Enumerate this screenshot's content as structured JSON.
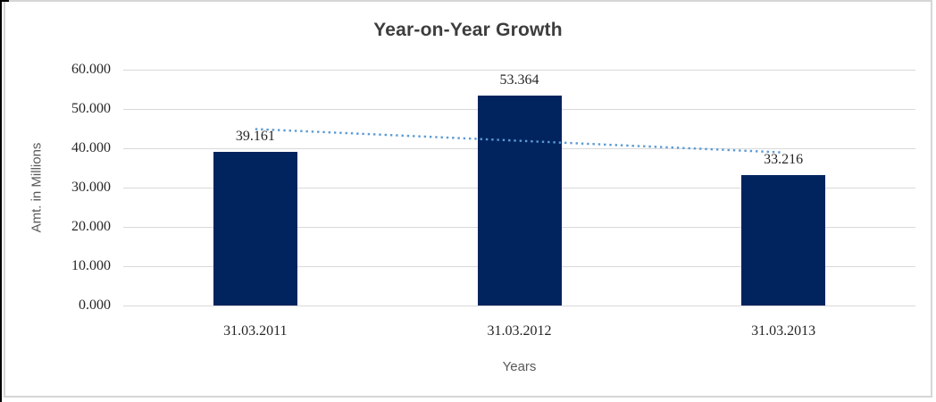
{
  "chart_data": {
    "type": "bar",
    "title": "Year-on-Year Growth",
    "xlabel": "Years",
    "ylabel": "Amt. in Millions",
    "categories": [
      "31.03.2011",
      "31.03.2012",
      "31.03.2013"
    ],
    "values": [
      39.161,
      53.364,
      33.216
    ],
    "data_labels": [
      "39.161",
      "53.364",
      "33.216"
    ],
    "yticks": [
      "0.000",
      "10.000",
      "20.000",
      "30.000",
      "40.000",
      "50.000",
      "60.000"
    ],
    "ylim": [
      0,
      60
    ],
    "grid": true,
    "legend": "none",
    "trendline_style": "dotted",
    "colors": {
      "bar": "#02245e",
      "trendline": "#5b9bd5",
      "gridline": "#d9d9d9",
      "tick_text": "#262626",
      "title_text": "#3d3d3d",
      "axis_title_text": "#595959",
      "border": "#d6d6d6"
    }
  }
}
